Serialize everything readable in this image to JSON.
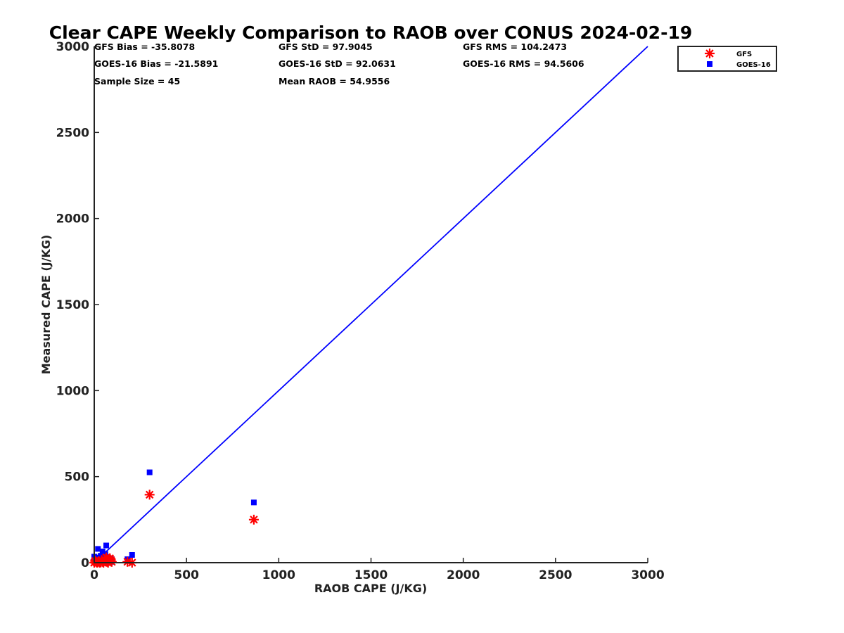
{
  "chart_data": {
    "type": "scatter",
    "title": "Clear CAPE Weekly Comparison to RAOB over CONUS 2024-02-19",
    "xlabel": "RAOB CAPE (J/KG)",
    "ylabel": "Measured CAPE (J/KG)",
    "xlim": [
      0,
      3000
    ],
    "ylim": [
      0,
      3000
    ],
    "xticks": [
      "0",
      "500",
      "1000",
      "1500",
      "2000",
      "2500",
      "3000"
    ],
    "yticks": [
      "0",
      "500",
      "1000",
      "1500",
      "2000",
      "2500",
      "3000"
    ],
    "grid": false,
    "legend_position": "top-right",
    "reference_line": {
      "x": [
        0,
        3000
      ],
      "y": [
        0,
        3000
      ],
      "color": "#0000ff"
    },
    "stats": [
      [
        "GFS Bias = -35.8078",
        "GFS StD = 97.9045",
        "GFS RMS = 104.2473"
      ],
      [
        "GOES-16 Bias = -21.5891",
        "GOES-16 StD = 92.0631",
        "GOES-16 RMS = 94.5606"
      ],
      [
        "Sample Size = 45",
        "Mean RAOB = 54.9556"
      ]
    ],
    "series": [
      {
        "name": "GFS",
        "marker": "asterisk",
        "color": "#ff0000",
        "points": [
          [
            0,
            0
          ],
          [
            5,
            10
          ],
          [
            10,
            5
          ],
          [
            15,
            0
          ],
          [
            20,
            3
          ],
          [
            25,
            8
          ],
          [
            30,
            0
          ],
          [
            35,
            2
          ],
          [
            40,
            15
          ],
          [
            45,
            5
          ],
          [
            50,
            0
          ],
          [
            55,
            20
          ],
          [
            60,
            10
          ],
          [
            65,
            30
          ],
          [
            70,
            5
          ],
          [
            75,
            0
          ],
          [
            80,
            10
          ],
          [
            85,
            25
          ],
          [
            90,
            15
          ],
          [
            95,
            5
          ],
          [
            180,
            5
          ],
          [
            205,
            0
          ],
          [
            300,
            395
          ],
          [
            865,
            250
          ]
        ]
      },
      {
        "name": "GOES-16",
        "marker": "square",
        "color": "#0000ff",
        "points": [
          [
            0,
            35
          ],
          [
            5,
            20
          ],
          [
            10,
            10
          ],
          [
            15,
            5
          ],
          [
            20,
            80
          ],
          [
            25,
            30
          ],
          [
            30,
            15
          ],
          [
            35,
            40
          ],
          [
            40,
            10
          ],
          [
            45,
            65
          ],
          [
            50,
            25
          ],
          [
            55,
            5
          ],
          [
            60,
            50
          ],
          [
            65,
            100
          ],
          [
            70,
            20
          ],
          [
            75,
            30
          ],
          [
            80,
            10
          ],
          [
            85,
            15
          ],
          [
            90,
            5
          ],
          [
            95,
            20
          ],
          [
            180,
            20
          ],
          [
            205,
            45
          ],
          [
            300,
            525
          ],
          [
            865,
            350
          ]
        ]
      }
    ]
  }
}
